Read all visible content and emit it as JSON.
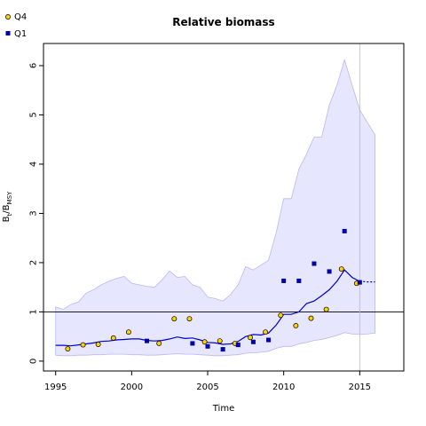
{
  "chart_data": {
    "type": "line",
    "title": "Relative biomass",
    "xlabel": "Time",
    "ylabel": {
      "main": "B",
      "sub1": "t",
      "sep": "/B",
      "sub2": "MSY"
    },
    "xlim": [
      1994.2,
      2017.9
    ],
    "ylim": [
      -0.2,
      6.45
    ],
    "xticks": [
      1995,
      2000,
      2005,
      2010,
      2015
    ],
    "yticks": [
      0,
      1,
      2,
      3,
      4,
      5,
      6
    ],
    "reference_line_y": 1,
    "vertical_line_x": 2015,
    "legend": {
      "placement": "top-left",
      "entries": [
        {
          "label": "Q4",
          "symbol": "circle",
          "color": "#ffd000"
        },
        {
          "label": "Q1",
          "symbol": "square",
          "color": "#0000aa"
        }
      ]
    },
    "colors": {
      "line": "#0000cc",
      "band_fill": "#e6e6ff",
      "band_edge": "#b8b8f2",
      "q4_point": "#ffd000",
      "q1_point": "#0000aa",
      "refline": "#000000",
      "vline": "#bbbbbb"
    },
    "series": [
      {
        "name": "estimate",
        "x": [
          1995,
          1995.5,
          1996,
          1996.5,
          1997,
          1997.5,
          1998,
          1998.5,
          1999,
          1999.5,
          2000,
          2000.5,
          2001,
          2001.5,
          2002,
          2002.5,
          2003,
          2003.5,
          2004,
          2004.5,
          2005,
          2005.5,
          2006,
          2006.5,
          2007,
          2007.5,
          2008,
          2008.5,
          2009,
          2009.5,
          2010,
          2010.5,
          2011,
          2011.5,
          2012,
          2012.5,
          2013,
          2013.5,
          2014,
          2014.5,
          2015
        ],
        "values": [
          0.32,
          0.32,
          0.31,
          0.33,
          0.35,
          0.37,
          0.4,
          0.41,
          0.43,
          0.44,
          0.45,
          0.45,
          0.42,
          0.41,
          0.42,
          0.45,
          0.49,
          0.46,
          0.47,
          0.43,
          0.38,
          0.37,
          0.34,
          0.35,
          0.4,
          0.5,
          0.54,
          0.53,
          0.57,
          0.73,
          0.95,
          0.95,
          1.0,
          1.17,
          1.22,
          1.33,
          1.45,
          1.62,
          1.85,
          1.7,
          1.62
        ]
      },
      {
        "name": "projection",
        "x": [
          2015,
          2015.5,
          2016
        ],
        "values": [
          1.62,
          1.61,
          1.61
        ]
      }
    ],
    "band": {
      "x": [
        1995,
        1995.5,
        1996,
        1996.5,
        1997,
        1997.5,
        1998,
        1998.5,
        1999,
        1999.5,
        2000,
        2000.5,
        2001,
        2001.5,
        2002,
        2002.5,
        2003,
        2003.5,
        2004,
        2004.5,
        2005,
        2005.5,
        2006,
        2006.5,
        2007,
        2007.5,
        2008,
        2008.5,
        2009,
        2009.5,
        2010,
        2010.5,
        2011,
        2011.5,
        2012,
        2012.5,
        2013,
        2013.5,
        2014,
        2014.5,
        2015,
        2015.5,
        2016
      ],
      "upper": [
        1.1,
        1.05,
        1.15,
        1.2,
        1.38,
        1.45,
        1.55,
        1.62,
        1.68,
        1.72,
        1.58,
        1.55,
        1.52,
        1.5,
        1.65,
        1.83,
        1.7,
        1.72,
        1.55,
        1.5,
        1.3,
        1.27,
        1.22,
        1.35,
        1.55,
        1.92,
        1.85,
        1.95,
        2.05,
        2.6,
        3.3,
        3.3,
        3.9,
        4.2,
        4.55,
        4.55,
        5.2,
        5.6,
        6.12,
        5.6,
        5.1,
        4.85,
        4.6
      ],
      "lower": [
        0.12,
        0.11,
        0.11,
        0.12,
        0.12,
        0.13,
        0.13,
        0.14,
        0.14,
        0.14,
        0.13,
        0.13,
        0.12,
        0.12,
        0.13,
        0.14,
        0.15,
        0.14,
        0.14,
        0.13,
        0.12,
        0.11,
        0.11,
        0.12,
        0.13,
        0.16,
        0.17,
        0.18,
        0.2,
        0.26,
        0.3,
        0.3,
        0.35,
        0.38,
        0.42,
        0.44,
        0.48,
        0.52,
        0.58,
        0.55,
        0.54,
        0.55,
        0.57
      ]
    },
    "points_q4": {
      "name": "Q4",
      "x": [
        1995.8,
        1996.8,
        1997.8,
        1998.8,
        1999.8,
        2001.8,
        2002.8,
        2003.8,
        2004.8,
        2005.8,
        2006.8,
        2007.8,
        2008.8,
        2009.8,
        2010.8,
        2011.8,
        2012.8,
        2013.8,
        2014.8
      ],
      "y": [
        0.25,
        0.33,
        0.34,
        0.47,
        0.59,
        0.36,
        0.86,
        0.86,
        0.39,
        0.41,
        0.36,
        0.48,
        0.59,
        0.93,
        0.72,
        0.87,
        1.05,
        1.87,
        1.58
      ]
    },
    "points_q1": {
      "name": "Q1",
      "x": [
        2001,
        2004,
        2005,
        2006,
        2007,
        2008,
        2009,
        2010,
        2011,
        2012,
        2013,
        2014,
        2015
      ],
      "y": [
        0.41,
        0.36,
        0.3,
        0.24,
        0.33,
        0.39,
        0.43,
        1.63,
        1.63,
        1.98,
        1.82,
        2.64,
        1.6
      ]
    }
  }
}
